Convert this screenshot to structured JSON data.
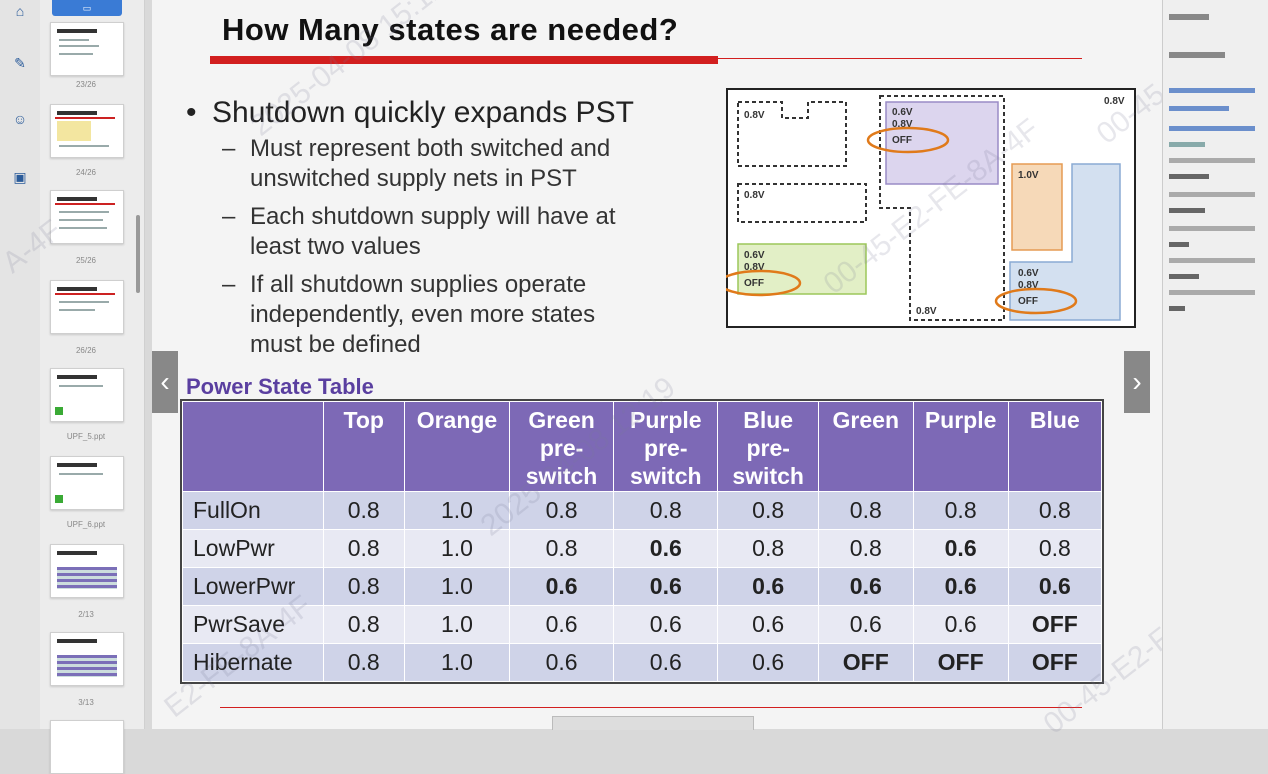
{
  "title": "How Many states are needed?",
  "bullets": {
    "main": "Shutdown quickly expands PST",
    "subs": [
      [
        "Must represent both switched and",
        "unswitched supply nets in PST"
      ],
      [
        "Each shutdown supply will have at",
        "least two values"
      ],
      [
        "If all shutdown supplies operate",
        "independently, even more states",
        "must be defined"
      ]
    ]
  },
  "diagram": {
    "labels": {
      "top_v": "0.8V",
      "a_v": "0.8V",
      "b_v": "0.8V",
      "purple_v1": "0.6V",
      "purple_v2": "0.8V",
      "purple_off": "OFF",
      "green_v1": "0.6V",
      "green_v2": "0.8V",
      "green_off": "OFF",
      "orange_v": "1.0V",
      "blue_v1": "0.6V",
      "blue_v2": "0.8V",
      "blue_off": "OFF",
      "bottom_v": "0.8V"
    },
    "colors": {
      "purple": "#dcd5ee",
      "green": "#e2efc6",
      "orange": "#f6d9b8",
      "blue": "#d3e0f0",
      "ellipse": "#e07a1a"
    }
  },
  "pst": {
    "title": "Power State Table",
    "headers": [
      [
        ""
      ],
      [
        "Top"
      ],
      [
        "Orange"
      ],
      [
        "Green",
        "pre-",
        "switch"
      ],
      [
        "Purple",
        "pre-",
        "switch"
      ],
      [
        "Blue",
        "pre-",
        "switch"
      ],
      [
        "Green"
      ],
      [
        "Purple"
      ],
      [
        "Blue"
      ]
    ],
    "rows": [
      {
        "label": "FullOn",
        "cells": [
          "0.8",
          "1.0",
          "0.8",
          "0.8",
          "0.8",
          "0.8",
          "0.8",
          "0.8"
        ],
        "bold": [
          false,
          false,
          false,
          false,
          false,
          false,
          false,
          false
        ]
      },
      {
        "label": "LowPwr",
        "cells": [
          "0.8",
          "1.0",
          "0.8",
          "0.6",
          "0.8",
          "0.8",
          "0.6",
          "0.8"
        ],
        "bold": [
          false,
          false,
          false,
          true,
          false,
          false,
          true,
          false
        ]
      },
      {
        "label": "LowerPwr",
        "cells": [
          "0.8",
          "1.0",
          "0.6",
          "0.6",
          "0.6",
          "0.6",
          "0.6",
          "0.6"
        ],
        "bold": [
          false,
          false,
          true,
          true,
          true,
          true,
          true,
          true
        ]
      },
      {
        "label": "PwrSave",
        "cells": [
          "0.8",
          "1.0",
          "0.6",
          "0.6",
          "0.6",
          "0.6",
          "0.6",
          "OFF"
        ],
        "bold": [
          false,
          false,
          false,
          false,
          false,
          false,
          false,
          true
        ]
      },
      {
        "label": "Hibernate",
        "cells": [
          "0.8",
          "1.0",
          "0.6",
          "0.6",
          "0.6",
          "OFF",
          "OFF",
          "OFF"
        ],
        "bold": [
          false,
          false,
          false,
          false,
          false,
          true,
          true,
          true
        ]
      }
    ]
  },
  "thumbnails": {
    "labels": [
      "23/26",
      "24/26",
      "25/26",
      "26/26",
      "UPF_5.ppt",
      "UPF_6.ppt",
      "2/13",
      "3/13"
    ]
  },
  "watermarks": [
    "2025-04-08 15:12",
    "A-4F",
    "00-45-E2-FE-8A-4F",
    "2025-04-08 12:19",
    "00-45-E2-FE-8A-4F",
    "E2-FE-8A-4F",
    "00-45-E2-FE-8"
  ],
  "nav": {
    "prev": "‹",
    "next": "›"
  }
}
